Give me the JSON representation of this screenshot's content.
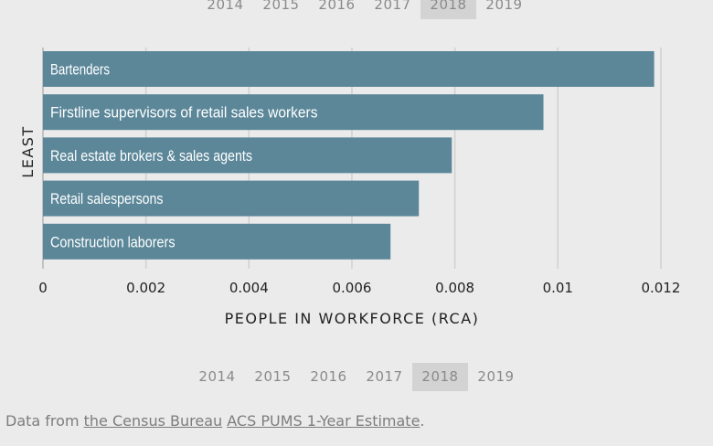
{
  "top_years": {
    "items": [
      "2014",
      "2015",
      "2016",
      "2017",
      "2018",
      "2019"
    ],
    "selected": "2018"
  },
  "bottom_years": {
    "items": [
      "2014",
      "2015",
      "2016",
      "2017",
      "2018",
      "2019"
    ],
    "selected": "2018"
  },
  "chart_data": {
    "type": "bar",
    "orientation": "horizontal",
    "categories": [
      "Bartenders",
      "Firstline supervisors of retail sales workers",
      "Real estate brokers & sales agents",
      "Retail salespersons",
      "Construction laborers"
    ],
    "values": [
      0.01187,
      0.00972,
      0.00794,
      0.0073,
      0.00675
    ],
    "xlabel": "PEOPLE IN WORKFORCE (RCA)",
    "ylabel": "LEAST",
    "xlim": [
      0,
      0.0128
    ],
    "xticks": [
      0,
      0.002,
      0.004,
      0.006,
      0.008,
      0.01,
      0.012
    ],
    "xtick_labels": [
      "0",
      "0.002",
      "0.004",
      "0.006",
      "0.008",
      "0.01",
      "0.012"
    ],
    "grid": true,
    "bar_color": "#5b8799",
    "label_color": "#ffffff"
  },
  "source": {
    "prefix": "Data from",
    "link1": "the Census Bureau",
    "link2": "ACS PUMS 1-Year Estimate",
    "suffix": "."
  }
}
